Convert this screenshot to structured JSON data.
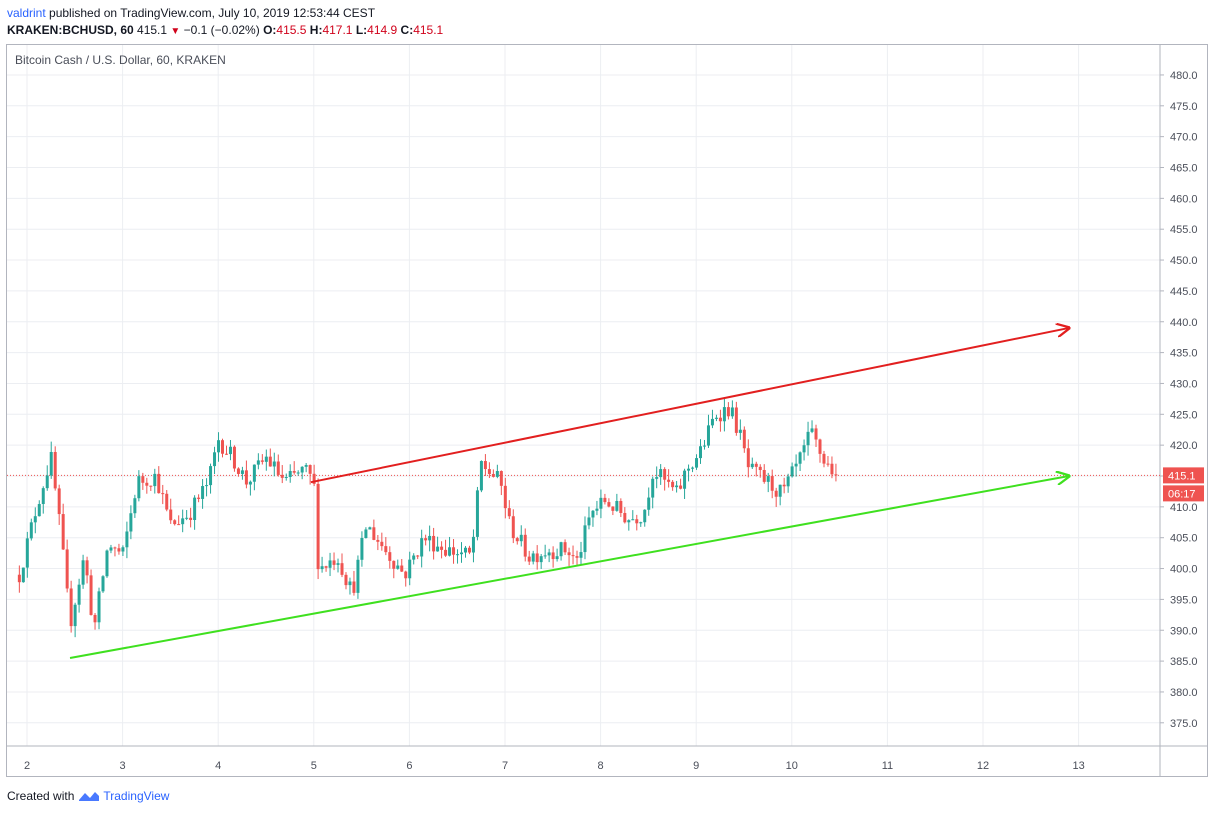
{
  "header": {
    "author": "valdrint",
    "published": "published on TradingView.com, July 10, 2019 12:53:44 CEST"
  },
  "ohlc": {
    "symbol": "KRAKEN:BCHUSD, 60",
    "last": "415.1",
    "change": "−0.1 (−0.02%)",
    "o_label": "O:",
    "o": "415.5",
    "h_label": "H:",
    "h": "417.1",
    "l_label": "L:",
    "l": "414.9",
    "c_label": "C:",
    "c": "415.1"
  },
  "footer": {
    "created": "Created with",
    "brand": "TradingView"
  },
  "chart_data": {
    "type": "candlestick",
    "title": "Bitcoin Cash / U.S. Dollar, 60, KRAKEN",
    "xlim": [
      1.9,
      14
    ],
    "ylim": [
      371,
      483
    ],
    "y_ticks": [
      375,
      380,
      385,
      390,
      395,
      400,
      405,
      410,
      415,
      420,
      425,
      430,
      435,
      440,
      445,
      450,
      455,
      460,
      465,
      470,
      475,
      480
    ],
    "y_tick_labels": [
      "375.0",
      "380.0",
      "385.0",
      "390.0",
      "395.0",
      "400.0",
      "405.0",
      "410.0",
      "415.0",
      "420.0",
      "425.0",
      "430.0",
      "435.0",
      "440.0",
      "445.0",
      "450.0",
      "455.0",
      "460.0",
      "465.0",
      "470.0",
      "475.0",
      "480.0"
    ],
    "x_ticks": [
      2,
      3,
      4,
      5,
      6,
      7,
      8,
      9,
      10,
      11,
      12,
      13
    ],
    "x_tick_labels": [
      "2",
      "3",
      "4",
      "5",
      "6",
      "7",
      "8",
      "9",
      "10",
      "11",
      "12",
      "13"
    ],
    "grid": true,
    "last_price": 415.1,
    "last_price_label": "415.1",
    "countdown_label": "06:17",
    "colors": {
      "up": "#26a69a",
      "down": "#ef5350",
      "resistance": "#e21f1f",
      "support": "#3fe01f",
      "price_line": "#ef5350",
      "grid": "#eceef2"
    },
    "anchors": [
      {
        "x": 1.92,
        "y": 399
      },
      {
        "x": 2.1,
        "y": 410
      },
      {
        "x": 2.25,
        "y": 418
      },
      {
        "x": 2.35,
        "y": 406
      },
      {
        "x": 2.45,
        "y": 391
      },
      {
        "x": 2.6,
        "y": 402
      },
      {
        "x": 2.7,
        "y": 390
      },
      {
        "x": 2.85,
        "y": 404
      },
      {
        "x": 3.0,
        "y": 402
      },
      {
        "x": 3.15,
        "y": 414
      },
      {
        "x": 3.35,
        "y": 415
      },
      {
        "x": 3.5,
        "y": 407
      },
      {
        "x": 3.7,
        "y": 409
      },
      {
        "x": 3.9,
        "y": 414
      },
      {
        "x": 4.0,
        "y": 421
      },
      {
        "x": 4.15,
        "y": 418
      },
      {
        "x": 4.3,
        "y": 414
      },
      {
        "x": 4.5,
        "y": 418
      },
      {
        "x": 4.7,
        "y": 414
      },
      {
        "x": 4.9,
        "y": 416
      },
      {
        "x": 5.0,
        "y": 414
      },
      {
        "x": 5.05,
        "y": 400
      },
      {
        "x": 5.25,
        "y": 402
      },
      {
        "x": 5.4,
        "y": 396
      },
      {
        "x": 5.55,
        "y": 407
      },
      {
        "x": 5.75,
        "y": 403
      },
      {
        "x": 5.95,
        "y": 399
      },
      {
        "x": 6.15,
        "y": 405
      },
      {
        "x": 6.4,
        "y": 403
      },
      {
        "x": 6.65,
        "y": 402
      },
      {
        "x": 6.75,
        "y": 417
      },
      {
        "x": 6.95,
        "y": 414
      },
      {
        "x": 7.05,
        "y": 407
      },
      {
        "x": 7.25,
        "y": 402
      },
      {
        "x": 7.45,
        "y": 403
      },
      {
        "x": 7.65,
        "y": 403
      },
      {
        "x": 7.75,
        "y": 401
      },
      {
        "x": 7.9,
        "y": 409
      },
      {
        "x": 8.05,
        "y": 411
      },
      {
        "x": 8.3,
        "y": 408
      },
      {
        "x": 8.45,
        "y": 409
      },
      {
        "x": 8.55,
        "y": 416
      },
      {
        "x": 8.8,
        "y": 412
      },
      {
        "x": 8.9,
        "y": 416
      },
      {
        "x": 9.05,
        "y": 419
      },
      {
        "x": 9.2,
        "y": 425
      },
      {
        "x": 9.35,
        "y": 426
      },
      {
        "x": 9.45,
        "y": 422
      },
      {
        "x": 9.55,
        "y": 416
      },
      {
        "x": 9.75,
        "y": 414
      },
      {
        "x": 9.9,
        "y": 412
      },
      {
        "x": 10.1,
        "y": 418
      },
      {
        "x": 10.2,
        "y": 422
      },
      {
        "x": 10.35,
        "y": 417
      },
      {
        "x": 10.5,
        "y": 415.1
      }
    ],
    "trendlines": [
      {
        "name": "resistance",
        "x1": 4.97,
        "y1": 414,
        "x2": 12.9,
        "y2": 439,
        "arrow": true
      },
      {
        "name": "support",
        "x1": 2.45,
        "y1": 385.5,
        "x2": 12.9,
        "y2": 415,
        "arrow": true
      }
    ]
  }
}
